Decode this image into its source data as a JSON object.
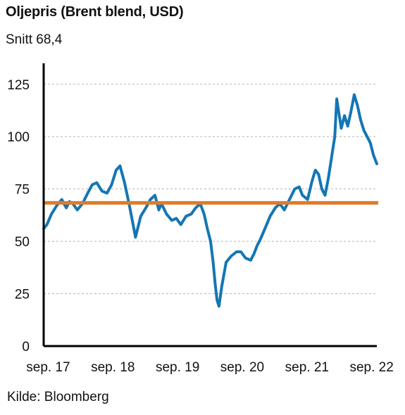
{
  "header": {
    "title": "Oljepris (Brent blend, USD)",
    "subtitle": "Snitt 68,4"
  },
  "footer": {
    "source": "Kilde: Bloomberg"
  },
  "colors": {
    "price_line": "#1476b4",
    "average_line": "#e07b27",
    "axis": "#000000",
    "grid": "#b5b5b5"
  },
  "chart_data": {
    "type": "line",
    "title": "Oljepris (Brent blend, USD)",
    "subtitle": "Snitt 68,4",
    "xlabel": "",
    "ylabel": "",
    "x_ticks": [
      "sep. 17",
      "sep. 18",
      "sep. 19",
      "sep. 20",
      "sep. 21",
      "sep. 22"
    ],
    "y_ticks": [
      0,
      25,
      50,
      75,
      100,
      125
    ],
    "ylim": [
      0,
      135
    ],
    "xlim": [
      2017.6,
      2022.75
    ],
    "grid": "horizontal dashed",
    "reference_line": {
      "value": 68.4
    },
    "series": [
      {
        "x": [
          2017.6,
          2017.65,
          2017.72,
          2017.8,
          2017.88,
          2017.95,
          2018.0,
          2018.05,
          2018.12,
          2018.2,
          2018.28,
          2018.35,
          2018.42,
          2018.5,
          2018.58,
          2018.65,
          2018.72,
          2018.78,
          2018.85,
          2018.92,
          2018.97,
          2019.02,
          2019.1,
          2019.18,
          2019.25,
          2019.32,
          2019.38,
          2019.42,
          2019.5,
          2019.58,
          2019.65,
          2019.72,
          2019.8,
          2019.88,
          2019.95,
          2020.02,
          2020.08,
          2020.13,
          2020.18,
          2020.22,
          2020.25,
          2020.28,
          2020.31,
          2020.35,
          2020.42,
          2020.5,
          2020.58,
          2020.65,
          2020.72,
          2020.8,
          2020.85,
          2020.9,
          2020.95,
          2021.02,
          2021.1,
          2021.18,
          2021.25,
          2021.32,
          2021.4,
          2021.48,
          2021.55,
          2021.6,
          2021.68,
          2021.75,
          2021.8,
          2021.85,
          2021.9,
          2021.95,
          2022.0,
          2022.05,
          2022.1,
          2022.13,
          2022.16,
          2022.2,
          2022.25,
          2022.3,
          2022.35,
          2022.4,
          2022.45,
          2022.5,
          2022.55,
          2022.6,
          2022.65,
          2022.7,
          2022.75
        ],
        "values": [
          56,
          58,
          63,
          67,
          70,
          66,
          69,
          68,
          65,
          68,
          73,
          77,
          78,
          74,
          73,
          77,
          84,
          86,
          78,
          68,
          60,
          52,
          62,
          66,
          70,
          72,
          65,
          68,
          63,
          60,
          61,
          58,
          62,
          63,
          66,
          68,
          63,
          56,
          50,
          40,
          30,
          22,
          19,
          28,
          40,
          43,
          45,
          45,
          42,
          41,
          44,
          48,
          51,
          56,
          62,
          66,
          68,
          65,
          70,
          75,
          76,
          72,
          70,
          79,
          84,
          82,
          75,
          72,
          80,
          90,
          100,
          118,
          112,
          104,
          110,
          105,
          112,
          120,
          115,
          108,
          103,
          100,
          97,
          91,
          87
        ]
      }
    ]
  }
}
